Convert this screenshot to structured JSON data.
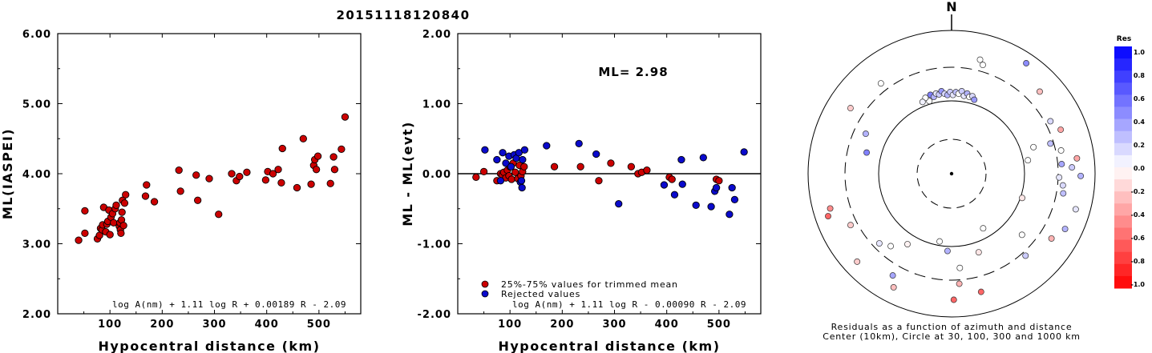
{
  "title": "20151118120840",
  "chart_data": [
    {
      "type": "scatter",
      "xlabel": "Hypocentral distance (km)",
      "ylabel": "ML(IASPEI)",
      "xlim": [
        0,
        580
      ],
      "ylim": [
        2.0,
        6.0
      ],
      "xticks": [
        "100",
        "200",
        "300",
        "400",
        "500"
      ],
      "yticks": [
        "2.00",
        "3.00",
        "4.00",
        "5.00",
        "6.00"
      ],
      "formula": "log A(nm) + 1.11 log R + 0.00189 R - 2.09",
      "series": [
        {
          "color": "#cc0000",
          "points": [
            [
              40,
              3.05
            ],
            [
              52,
              3.15
            ],
            [
              52,
              3.47
            ],
            [
              76,
              3.07
            ],
            [
              80,
              3.12
            ],
            [
              82,
              3.22
            ],
            [
              85,
              3.2
            ],
            [
              86,
              3.27
            ],
            [
              88,
              3.52
            ],
            [
              92,
              3.17
            ],
            [
              94,
              3.28
            ],
            [
              96,
              3.32
            ],
            [
              98,
              3.48
            ],
            [
              100,
              3.13
            ],
            [
              102,
              3.38
            ],
            [
              105,
              3.43
            ],
            [
              107,
              3.3
            ],
            [
              110,
              3.5
            ],
            [
              112,
              3.55
            ],
            [
              118,
              3.25
            ],
            [
              119,
              3.3
            ],
            [
              120,
              3.2
            ],
            [
              121,
              3.15
            ],
            [
              122,
              3.34
            ],
            [
              123,
              3.45
            ],
            [
              124,
              3.62
            ],
            [
              126,
              3.26
            ],
            [
              128,
              3.58
            ],
            [
              130,
              3.7
            ],
            [
              168,
              3.68
            ],
            [
              170,
              3.84
            ],
            [
              185,
              3.6
            ],
            [
              232,
              4.05
            ],
            [
              235,
              3.75
            ],
            [
              265,
              3.98
            ],
            [
              268,
              3.62
            ],
            [
              290,
              3.93
            ],
            [
              308,
              3.42
            ],
            [
              333,
              4.0
            ],
            [
              342,
              3.9
            ],
            [
              348,
              3.96
            ],
            [
              362,
              4.02
            ],
            [
              398,
              3.91
            ],
            [
              402,
              4.03
            ],
            [
              412,
              4.0
            ],
            [
              422,
              4.06
            ],
            [
              428,
              3.87
            ],
            [
              430,
              4.36
            ],
            [
              458,
              3.8
            ],
            [
              470,
              4.5
            ],
            [
              485,
              3.85
            ],
            [
              490,
              4.12
            ],
            [
              492,
              4.2
            ],
            [
              495,
              4.06
            ],
            [
              498,
              4.25
            ],
            [
              522,
              3.86
            ],
            [
              528,
              4.24
            ],
            [
              530,
              4.06
            ],
            [
              543,
              4.35
            ],
            [
              550,
              4.81
            ]
          ]
        }
      ]
    },
    {
      "type": "scatter",
      "xlabel": "Hypocentral distance (km)",
      "ylabel": "ML - ML(evt)",
      "xlim": [
        0,
        580
      ],
      "ylim": [
        -2.0,
        2.0
      ],
      "xticks": [
        "100",
        "200",
        "300",
        "400",
        "500"
      ],
      "yticks": [
        "-2.00",
        "-1.00",
        "0.00",
        "1.00",
        "2.00"
      ],
      "annotation": "ML= 2.98",
      "formula": "log A(nm) + 1.11 log R - 0.00090 R - 2.09",
      "series": [
        {
          "name": "25%-75% values for trimmed mean",
          "color": "#cc0000",
          "points": [
            [
              35,
              -0.05
            ],
            [
              50,
              0.03
            ],
            [
              75,
              -0.1
            ],
            [
              82,
              0.0
            ],
            [
              85,
              -0.02
            ],
            [
              88,
              0.02
            ],
            [
              92,
              -0.06
            ],
            [
              95,
              0.05
            ],
            [
              98,
              -0.03
            ],
            [
              100,
              0.1
            ],
            [
              103,
              -0.08
            ],
            [
              106,
              0.15
            ],
            [
              110,
              0.02
            ],
            [
              115,
              -0.07
            ],
            [
              118,
              0.12
            ],
            [
              121,
              -0.03
            ],
            [
              124,
              0.03
            ],
            [
              127,
              0.1
            ],
            [
              185,
              0.1
            ],
            [
              235,
              0.1
            ],
            [
              270,
              -0.1
            ],
            [
              293,
              0.15
            ],
            [
              332,
              0.1
            ],
            [
              345,
              0.0
            ],
            [
              352,
              0.02
            ],
            [
              362,
              0.05
            ],
            [
              405,
              -0.05
            ],
            [
              410,
              -0.08
            ],
            [
              495,
              -0.08
            ],
            [
              500,
              -0.1
            ]
          ]
        },
        {
          "name": "Rejected values",
          "color": "#0a0acc",
          "points": [
            [
              52,
              0.34
            ],
            [
              75,
              0.2
            ],
            [
              82,
              -0.1
            ],
            [
              86,
              0.3
            ],
            [
              92,
              0.15
            ],
            [
              98,
              0.25
            ],
            [
              102,
              0.1
            ],
            [
              108,
              0.27
            ],
            [
              112,
              0.22
            ],
            [
              117,
              0.3
            ],
            [
              120,
              -0.12
            ],
            [
              122,
              -0.1
            ],
            [
              123,
              -0.2
            ],
            [
              124,
              0.2
            ],
            [
              128,
              0.34
            ],
            [
              170,
              0.4
            ],
            [
              232,
              0.43
            ],
            [
              265,
              0.28
            ],
            [
              308,
              -0.43
            ],
            [
              395,
              -0.16
            ],
            [
              415,
              -0.3
            ],
            [
              428,
              0.2
            ],
            [
              430,
              -0.15
            ],
            [
              456,
              -0.45
            ],
            [
              470,
              0.23
            ],
            [
              485,
              -0.47
            ],
            [
              492,
              -0.25
            ],
            [
              495,
              -0.2
            ],
            [
              520,
              -0.58
            ],
            [
              525,
              -0.2
            ],
            [
              530,
              -0.37
            ],
            [
              548,
              0.31
            ]
          ]
        }
      ]
    }
  ],
  "polar": {
    "north_label": "N",
    "caption_line1": "Residuals as a function of azimuth and distance",
    "caption_line2": "Center (10km), Circle at 30, 100, 300 and 1000 km",
    "colorbar": {
      "title": "Res",
      "labels": [
        "1.0",
        "0.8",
        "0.6",
        "0.4",
        "0.2",
        "0.0",
        "-0.2",
        "-0.4",
        "-0.6",
        "-0.8",
        "-1.0"
      ]
    },
    "stations": [
      {
        "az": 34,
        "r": 0.93,
        "res": 0.45
      },
      {
        "az": 14,
        "r": 0.82,
        "res": 0.0
      },
      {
        "az": 16,
        "r": 0.79,
        "res": 0.0
      },
      {
        "az": 47,
        "r": 0.84,
        "res": -0.25
      },
      {
        "az": 62,
        "r": 0.78,
        "res": 0.15
      },
      {
        "az": 68,
        "r": 0.82,
        "res": -0.35
      },
      {
        "az": 72,
        "r": 0.6,
        "res": 0.0
      },
      {
        "az": 73,
        "r": 0.72,
        "res": 0.25
      },
      {
        "az": 78,
        "r": 0.78,
        "res": 0.0
      },
      {
        "az": 80,
        "r": 0.54,
        "res": 0.0
      },
      {
        "az": 83,
        "r": 0.88,
        "res": -0.35
      },
      {
        "az": 85,
        "r": 0.77,
        "res": 0.35
      },
      {
        "az": 87,
        "r": 0.84,
        "res": 0.2
      },
      {
        "az": 91,
        "r": 0.9,
        "res": 0.3
      },
      {
        "az": 92,
        "r": 0.75,
        "res": 0.1
      },
      {
        "az": 96,
        "r": 0.78,
        "res": 0.15
      },
      {
        "az": 100,
        "r": 0.79,
        "res": 0.25
      },
      {
        "az": 106,
        "r": 0.9,
        "res": 0.1
      },
      {
        "az": 109,
        "r": 0.52,
        "res": -0.1
      },
      {
        "az": 116,
        "r": 0.88,
        "res": 0.3
      },
      {
        "az": 123,
        "r": 0.83,
        "res": -0.3
      },
      {
        "az": 131,
        "r": 0.65,
        "res": 0.0
      },
      {
        "az": 138,
        "r": 0.77,
        "res": 0.2
      },
      {
        "az": 150,
        "r": 0.44,
        "res": 0.0
      },
      {
        "az": 161,
        "r": 0.58,
        "res": -0.1
      },
      {
        "az": 166,
        "r": 0.85,
        "res": -0.6
      },
      {
        "az": 175,
        "r": 0.66,
        "res": 0.0
      },
      {
        "az": 176,
        "r": 0.77,
        "res": -0.3
      },
      {
        "az": 179,
        "r": 0.88,
        "res": -0.6
      },
      {
        "az": 183,
        "r": 0.54,
        "res": 0.3
      },
      {
        "az": 190,
        "r": 0.48,
        "res": 0.0
      },
      {
        "az": 207,
        "r": 0.89,
        "res": -0.25
      },
      {
        "az": 210,
        "r": 0.82,
        "res": 0.35
      },
      {
        "az": 212,
        "r": 0.58,
        "res": -0.05
      },
      {
        "az": 220,
        "r": 0.66,
        "res": 0.0
      },
      {
        "az": 226,
        "r": 0.7,
        "res": 0.1
      },
      {
        "az": 227,
        "r": 0.9,
        "res": -0.2
      },
      {
        "az": 243,
        "r": 0.79,
        "res": -0.2
      },
      {
        "az": 251,
        "r": 0.91,
        "res": -0.6
      },
      {
        "az": 254,
        "r": 0.88,
        "res": -0.45
      },
      {
        "az": 284,
        "r": 0.61,
        "res": 0.5
      },
      {
        "az": 295,
        "r": 0.66,
        "res": 0.3
      },
      {
        "az": 303,
        "r": 0.84,
        "res": -0.2
      },
      {
        "az": 322,
        "r": 0.8,
        "res": 0.0
      },
      {
        "az": 345,
        "r": 0.57,
        "res": 0.5
      },
      {
        "az": 347,
        "r": 0.55,
        "res": 0.3
      },
      {
        "az": 349,
        "r": 0.57,
        "res": 0.1
      },
      {
        "az": 351,
        "r": 0.56,
        "res": 0.2
      },
      {
        "az": 353,
        "r": 0.58,
        "res": 0.4
      },
      {
        "az": 355,
        "r": 0.56,
        "res": 0.15
      },
      {
        "az": 357,
        "r": 0.55,
        "res": 0.3
      },
      {
        "az": 359,
        "r": 0.57,
        "res": 0.2
      },
      {
        "az": 1,
        "r": 0.55,
        "res": 0.1
      },
      {
        "az": 3,
        "r": 0.57,
        "res": 0.25
      },
      {
        "az": 5,
        "r": 0.56,
        "res": 0.0
      },
      {
        "az": 7,
        "r": 0.58,
        "res": 0.2
      },
      {
        "az": 9,
        "r": 0.55,
        "res": 0.1
      },
      {
        "az": 11,
        "r": 0.57,
        "res": 0.3
      },
      {
        "az": 13,
        "r": 0.55,
        "res": 0.0
      },
      {
        "az": 15,
        "r": 0.56,
        "res": 0.15
      },
      {
        "az": 17,
        "r": 0.54,
        "res": 0.4
      },
      {
        "az": 343,
        "r": 0.53,
        "res": 0.0
      },
      {
        "az": 341,
        "r": 0.56,
        "res": 0.0
      },
      {
        "az": 338,
        "r": 0.54,
        "res": 0.05
      }
    ]
  }
}
